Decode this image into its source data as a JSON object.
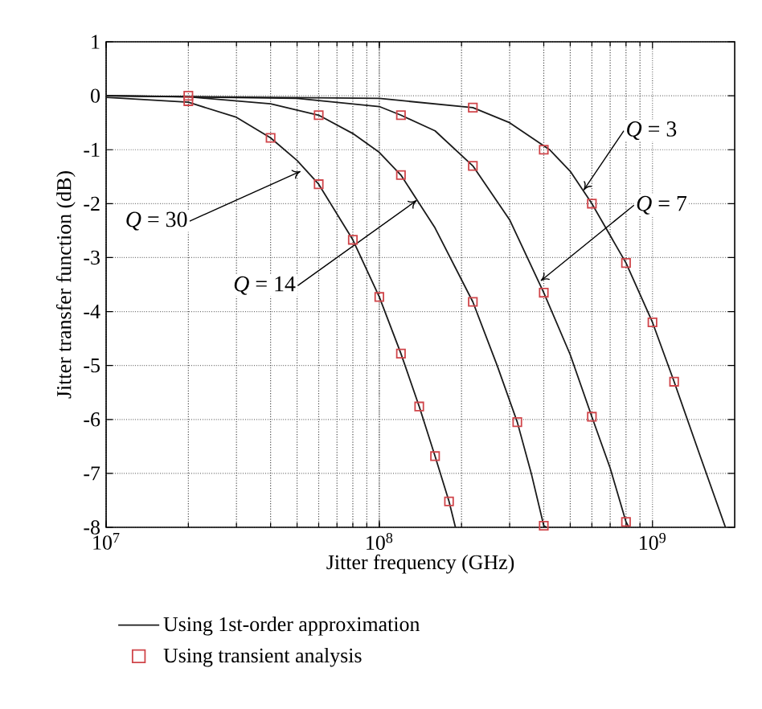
{
  "chart_data": {
    "type": "line",
    "xlabel": "Jitter frequency (GHz)",
    "ylabel": "Jitter transfer function (dB)",
    "log": "x",
    "grid": true,
    "legend": "bottom",
    "line_style": "solid",
    "xlim": [
      10000000,
      2000000000
    ],
    "ylim": [
      -8,
      1
    ],
    "xticks": [
      {
        "value": 10000000,
        "label": "10$^{7}$"
      },
      {
        "value": 100000000,
        "label": "10$^{8}$"
      },
      {
        "value": 1000000000,
        "label": "10$^{9}$"
      }
    ],
    "yticks": [
      -8,
      -7,
      -6,
      -5,
      -4,
      -3,
      -2,
      -1,
      0,
      1
    ],
    "series": [
      {
        "name": "Using 1st-order approximation",
        "type": "line",
        "marker": "none",
        "color": "#1a1a1a",
        "x": [
          10000000,
          20000000,
          30000000,
          40000000,
          50000000,
          60000000,
          80000000,
          100000000,
          120000000,
          140000000,
          160000000,
          180000000,
          190000000
        ],
        "values": [
          -0.03,
          -0.12,
          -0.4,
          -0.78,
          -1.2,
          -1.64,
          -2.67,
          -3.73,
          -4.78,
          -5.76,
          -6.68,
          -7.52,
          -8
        ]
      },
      {
        "type": "line",
        "marker": "none",
        "color": "#1a1a1a",
        "x": [
          10000000,
          20000000,
          40000000,
          60000000,
          80000000,
          100000000,
          120000000,
          160000000,
          220000000,
          270000000,
          320000000,
          360000000,
          400000000,
          410000000
        ],
        "values": [
          0,
          -0.02,
          -0.15,
          -0.36,
          -0.7,
          -1.05,
          -1.47,
          -2.45,
          -3.82,
          -5.0,
          -6.05,
          -7.0,
          -7.97,
          -8
        ]
      },
      {
        "type": "line",
        "marker": "none",
        "color": "#1a1a1a",
        "x": [
          10000000,
          50000000,
          100000000,
          120000000,
          160000000,
          220000000,
          300000000,
          400000000,
          500000000,
          600000000,
          700000000,
          800000000,
          820000000
        ],
        "values": [
          0,
          -0.05,
          -0.2,
          -0.36,
          -0.65,
          -1.3,
          -2.3,
          -3.65,
          -4.8,
          -5.95,
          -6.9,
          -7.9,
          -8
        ]
      },
      {
        "type": "line",
        "marker": "none",
        "color": "#1a1a1a",
        "x": [
          10000000,
          100000000,
          220000000,
          300000000,
          420000000,
          500000000,
          600000000,
          800000000,
          1000000000,
          1200000000,
          1500000000,
          1850000000
        ],
        "values": [
          0,
          -0.05,
          -0.22,
          -0.5,
          -1.0,
          -1.4,
          -2.0,
          -3.1,
          -4.2,
          -5.3,
          -6.7,
          -8
        ]
      },
      {
        "name": "Using transient analysis",
        "type": "scatter",
        "marker": "square",
        "color": "#d0454a",
        "x": [
          20000000,
          40000000,
          60000000,
          80000000,
          100000000,
          120000000,
          140000000,
          160000000,
          180000000,
          20000000,
          60000000,
          120000000,
          220000000,
          320000000,
          400000000,
          120000000,
          220000000,
          400000000,
          600000000,
          800000000,
          220000000,
          400000000,
          600000000,
          800000000,
          1000000000,
          1200000000
        ],
        "values": [
          -0.1,
          -0.78,
          -1.64,
          -2.67,
          -3.73,
          -4.78,
          -5.76,
          -6.68,
          -7.52,
          0,
          -0.36,
          -1.47,
          -3.82,
          -6.05,
          -7.97,
          -0.36,
          -1.3,
          -3.65,
          -5.95,
          -7.9,
          -0.22,
          -1.0,
          -2.0,
          -3.1,
          -4.2,
          -5.3
        ]
      }
    ],
    "annotations": [
      {
        "text": "*Q* = 3",
        "x": 560000000,
        "y": -1.75
      },
      {
        "text": "*Q* = 7",
        "x": 390000000,
        "y": -3.43
      },
      {
        "text": "*Q* = 30",
        "x": 51500000,
        "y": -1.4
      },
      {
        "text": "*Q* = 14",
        "x": 137000000,
        "y": -1.94
      }
    ]
  }
}
